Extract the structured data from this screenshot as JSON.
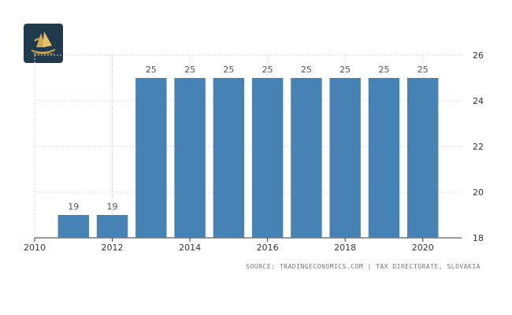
{
  "source_text": "SOURCE: TRADINGECONOMICS.COM | TAX DIRECTORATE, SLOVAKIA",
  "colors": {
    "bar": "#4682b4",
    "grid": "#d9d9d9",
    "logo_bg": "#1e3a4c",
    "logo_gold": "#d4a94a"
  },
  "chart_data": {
    "type": "bar",
    "title": "",
    "xlabel": "",
    "ylabel": "",
    "categories": [
      2011,
      2012,
      2013,
      2014,
      2015,
      2016,
      2017,
      2018,
      2019,
      2020
    ],
    "values": [
      19,
      19,
      25,
      25,
      25,
      25,
      25,
      25,
      25,
      25
    ],
    "data_labels": [
      "19",
      "19",
      "25",
      "25",
      "25",
      "25",
      "25",
      "25",
      "25",
      "25"
    ],
    "x_ticks": [
      "2010",
      "2012",
      "2014",
      "2016",
      "2018",
      "2020"
    ],
    "x_tick_values": [
      2010,
      2012,
      2014,
      2016,
      2018,
      2020
    ],
    "xlim": [
      2010,
      2021
    ],
    "y_ticks": [
      "18",
      "20",
      "22",
      "24",
      "26"
    ],
    "y_tick_values": [
      18,
      20,
      22,
      24,
      26
    ],
    "ylim": [
      18,
      26
    ],
    "y_axis_side": "right",
    "grid": true
  }
}
